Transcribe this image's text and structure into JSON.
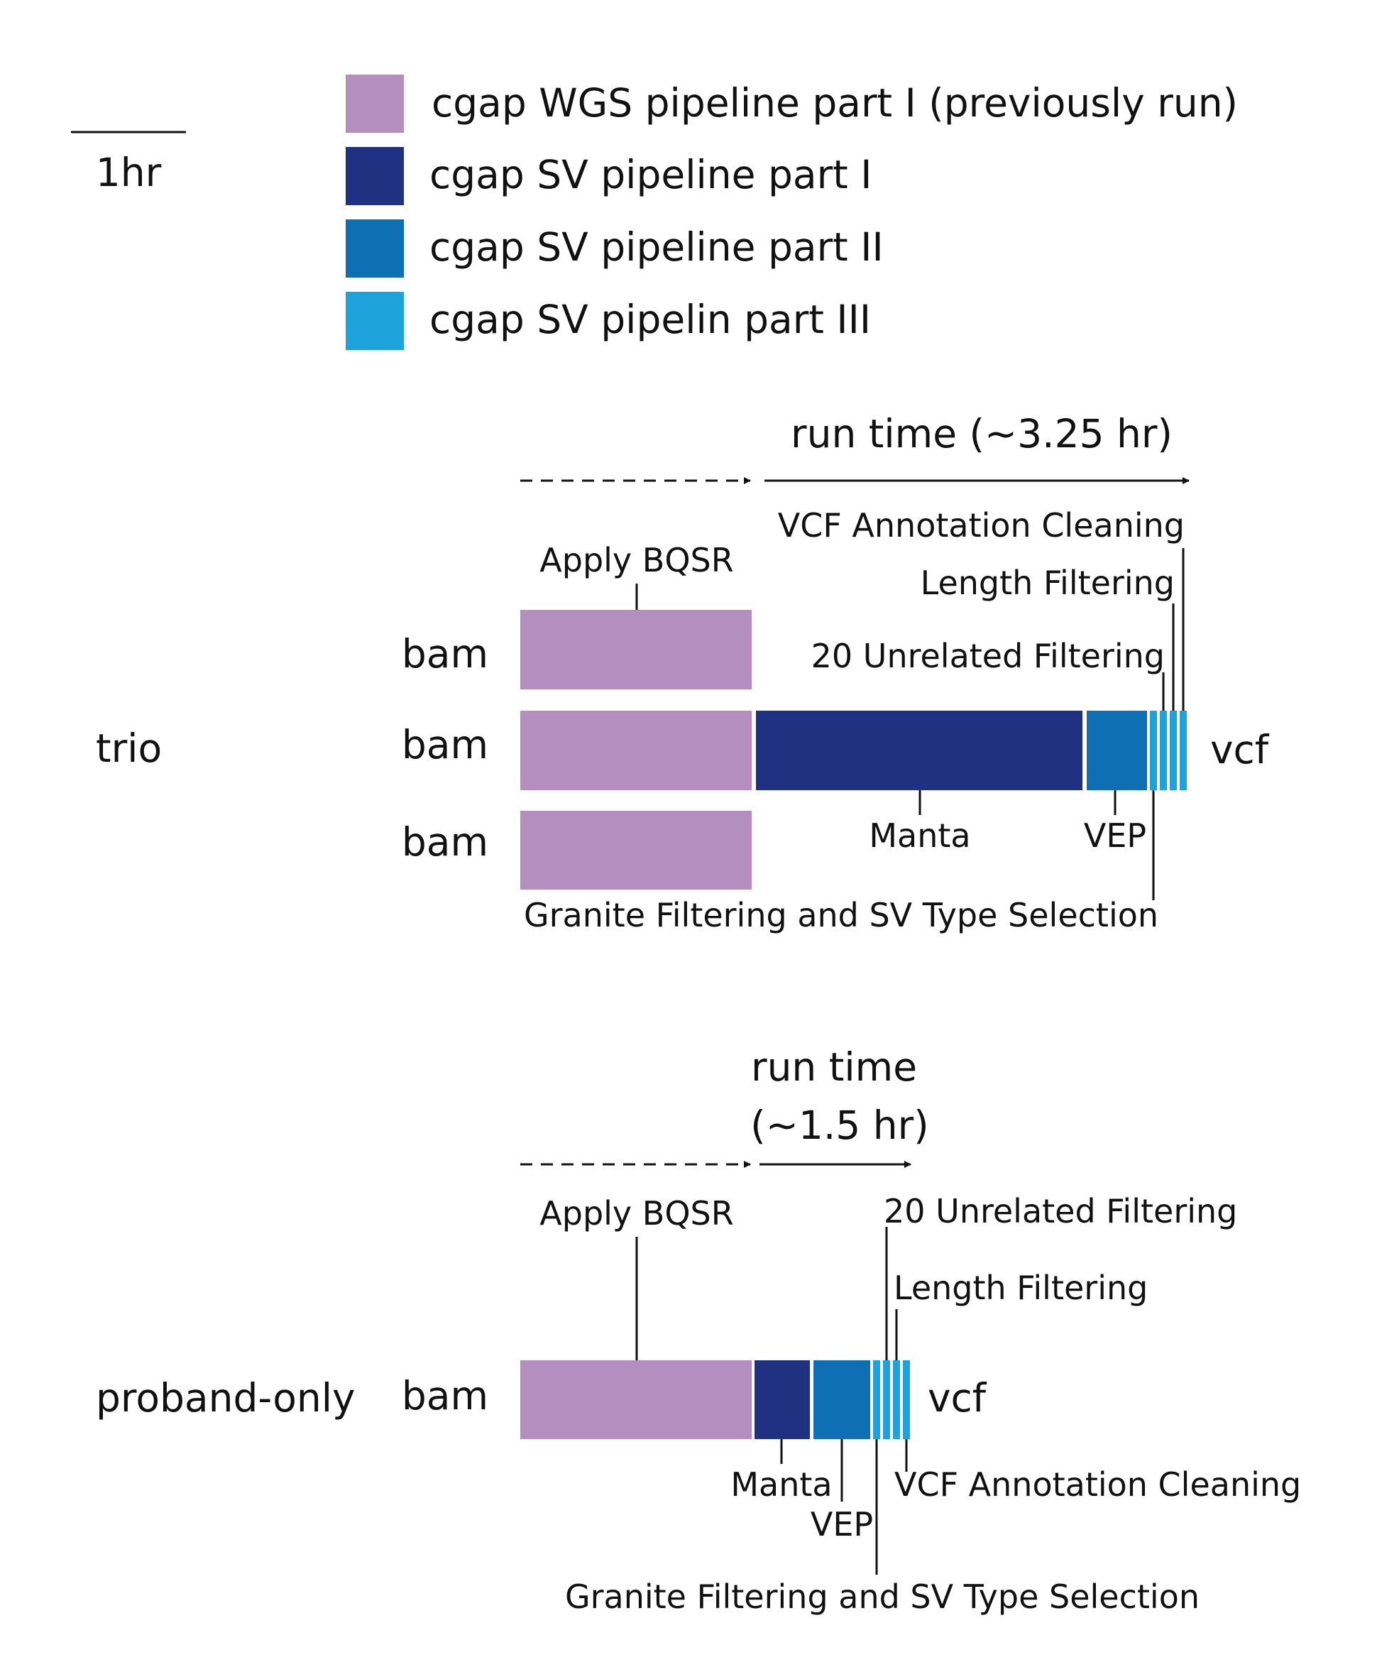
{
  "scale": {
    "label": "1hr"
  },
  "legend": [
    {
      "label": "cgap WGS pipeline part I (previously run)",
      "color": "#b48ebe"
    },
    {
      "label": "cgap SV pipeline part I",
      "color": "#1f3180"
    },
    {
      "label": "cgap SV pipeline part II",
      "color": "#0f6fb4"
    },
    {
      "label": "cgap SV pipelin part III",
      "color": "#1ea2db"
    }
  ],
  "trio": {
    "label": "trio",
    "run_time": "run time (~3.25 hr)",
    "inputs": [
      "bam",
      "bam",
      "bam"
    ],
    "output": "vcf",
    "steps": {
      "apply_bqsr": "Apply BQSR",
      "manta": "Manta",
      "vep": "VEP",
      "granite": "Granite Filtering and SV Type Selection",
      "unrelated": "20 Unrelated Filtering",
      "length": "Length Filtering",
      "vcf_cleaning": "VCF Annotation Cleaning"
    }
  },
  "proband": {
    "label": "proband-only",
    "run_time_line1": "run time",
    "run_time_line2": "(~1.5 hr)",
    "input": "bam",
    "output": "vcf",
    "steps": {
      "apply_bqsr": "Apply BQSR",
      "manta": "Manta",
      "vep": "VEP",
      "granite": "Granite Filtering and SV Type Selection",
      "unrelated": "20 Unrelated Filtering",
      "length": "Length Filtering",
      "vcf_cleaning": "VCF Annotation Cleaning"
    }
  }
}
